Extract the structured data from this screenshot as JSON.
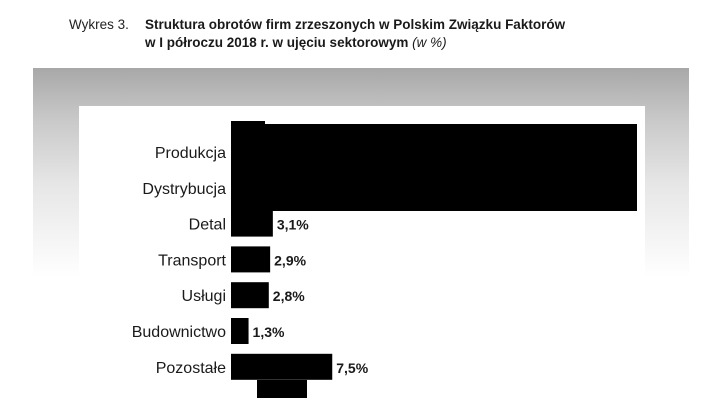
{
  "caption": {
    "prefix": "Wykres 3.",
    "title_line1": "Struktura obrotów firm zrzeszonych w Polskim Związku Faktorów",
    "title_line2": "w I półroczu 2018 r. w ujęciu sektorowym",
    "unit": "(w %)"
  },
  "colors": {
    "bar": "#000000",
    "band_top": "#a8a8a8",
    "panel": "#ffffff"
  },
  "chart_data": {
    "type": "bar",
    "orientation": "horizontal",
    "categories": [
      "Produkcja",
      "Dystrybucja",
      "Detal",
      "Transport",
      "Usługi",
      "Budownictwo",
      "Pozostałe"
    ],
    "values": [
      null,
      null,
      3.1,
      2.9,
      2.8,
      1.3,
      7.5
    ],
    "value_labels": [
      "",
      "",
      "3,1%",
      "2,9%",
      "2,8%",
      "1,3%",
      "7,5%"
    ],
    "obscured": [
      true,
      true,
      false,
      false,
      false,
      false,
      false
    ],
    "grid": false,
    "legend": "none"
  }
}
